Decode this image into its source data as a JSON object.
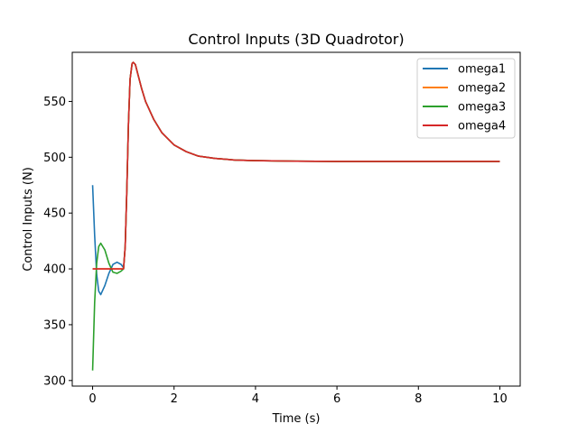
{
  "chart_data": {
    "type": "line",
    "title": "Control Inputs (3D Quadrotor)",
    "xlabel": "Time (s)",
    "ylabel": "Control Inputs (N)",
    "xlim": [
      -0.5,
      10.5
    ],
    "ylim": [
      295,
      594
    ],
    "xticks": [
      0,
      2,
      4,
      6,
      8,
      10
    ],
    "yticks": [
      300,
      350,
      400,
      450,
      500,
      550
    ],
    "grid": false,
    "legend_position": "top-right",
    "series": [
      {
        "name": "omega1",
        "color": "#1f77b4",
        "points": [
          [
            0,
            475
          ],
          [
            0.05,
            430
          ],
          [
            0.1,
            395
          ],
          [
            0.15,
            380
          ],
          [
            0.2,
            377
          ],
          [
            0.3,
            385
          ],
          [
            0.4,
            396
          ],
          [
            0.5,
            404
          ],
          [
            0.6,
            406
          ],
          [
            0.7,
            404
          ],
          [
            0.76,
            401
          ],
          [
            0.8,
            420
          ],
          [
            0.84,
            470
          ],
          [
            0.88,
            530
          ],
          [
            0.92,
            570
          ],
          [
            0.97,
            584
          ],
          [
            1.0,
            585
          ],
          [
            1.05,
            583
          ],
          [
            1.1,
            576
          ],
          [
            1.2,
            562
          ],
          [
            1.3,
            550
          ],
          [
            1.5,
            534
          ],
          [
            1.7,
            522
          ],
          [
            2.0,
            511
          ],
          [
            2.3,
            505
          ],
          [
            2.6,
            501
          ],
          [
            3.0,
            499
          ],
          [
            3.5,
            497.5
          ],
          [
            4.0,
            497
          ],
          [
            5.0,
            496.5
          ],
          [
            6.0,
            496.3
          ],
          [
            8.0,
            496.3
          ],
          [
            10.0,
            496.3
          ]
        ]
      },
      {
        "name": "omega2",
        "color": "#ff7f0e",
        "points": [
          [
            0,
            400
          ],
          [
            0.76,
            400
          ],
          [
            0.8,
            420
          ],
          [
            0.84,
            470
          ],
          [
            0.88,
            530
          ],
          [
            0.92,
            570
          ],
          [
            0.97,
            584
          ],
          [
            1.0,
            585
          ],
          [
            1.05,
            583
          ],
          [
            1.1,
            576
          ],
          [
            1.2,
            562
          ],
          [
            1.3,
            550
          ],
          [
            1.5,
            534
          ],
          [
            1.7,
            522
          ],
          [
            2.0,
            511
          ],
          [
            2.3,
            505
          ],
          [
            2.6,
            501
          ],
          [
            3.0,
            499
          ],
          [
            3.5,
            497.5
          ],
          [
            4.0,
            497
          ],
          [
            5.0,
            496.5
          ],
          [
            6.0,
            496.3
          ],
          [
            8.0,
            496.3
          ],
          [
            10.0,
            496.3
          ]
        ]
      },
      {
        "name": "omega3",
        "color": "#2ca02c",
        "points": [
          [
            0,
            309
          ],
          [
            0.05,
            370
          ],
          [
            0.1,
            405
          ],
          [
            0.15,
            420
          ],
          [
            0.2,
            423
          ],
          [
            0.3,
            417
          ],
          [
            0.4,
            405
          ],
          [
            0.5,
            397
          ],
          [
            0.6,
            396
          ],
          [
            0.7,
            398
          ],
          [
            0.76,
            400
          ],
          [
            0.8,
            420
          ],
          [
            0.84,
            470
          ],
          [
            0.88,
            530
          ],
          [
            0.92,
            570
          ],
          [
            0.97,
            584
          ],
          [
            1.0,
            585
          ],
          [
            1.05,
            583
          ],
          [
            1.1,
            576
          ],
          [
            1.2,
            562
          ],
          [
            1.3,
            550
          ],
          [
            1.5,
            534
          ],
          [
            1.7,
            522
          ],
          [
            2.0,
            511
          ],
          [
            2.3,
            505
          ],
          [
            2.6,
            501
          ],
          [
            3.0,
            499
          ],
          [
            3.5,
            497.5
          ],
          [
            4.0,
            497
          ],
          [
            5.0,
            496.5
          ],
          [
            6.0,
            496.3
          ],
          [
            8.0,
            496.3
          ],
          [
            10.0,
            496.3
          ]
        ]
      },
      {
        "name": "omega4",
        "color": "#d62728",
        "points": [
          [
            0,
            400
          ],
          [
            0.76,
            400
          ],
          [
            0.8,
            420
          ],
          [
            0.84,
            470
          ],
          [
            0.88,
            530
          ],
          [
            0.92,
            570
          ],
          [
            0.97,
            584
          ],
          [
            1.0,
            585
          ],
          [
            1.05,
            583
          ],
          [
            1.1,
            576
          ],
          [
            1.2,
            562
          ],
          [
            1.3,
            550
          ],
          [
            1.5,
            534
          ],
          [
            1.7,
            522
          ],
          [
            2.0,
            511
          ],
          [
            2.3,
            505
          ],
          [
            2.6,
            501
          ],
          [
            3.0,
            499
          ],
          [
            3.5,
            497.5
          ],
          [
            4.0,
            497
          ],
          [
            5.0,
            496.5
          ],
          [
            6.0,
            496.3
          ],
          [
            8.0,
            496.3
          ],
          [
            10.0,
            496.3
          ]
        ]
      }
    ]
  }
}
